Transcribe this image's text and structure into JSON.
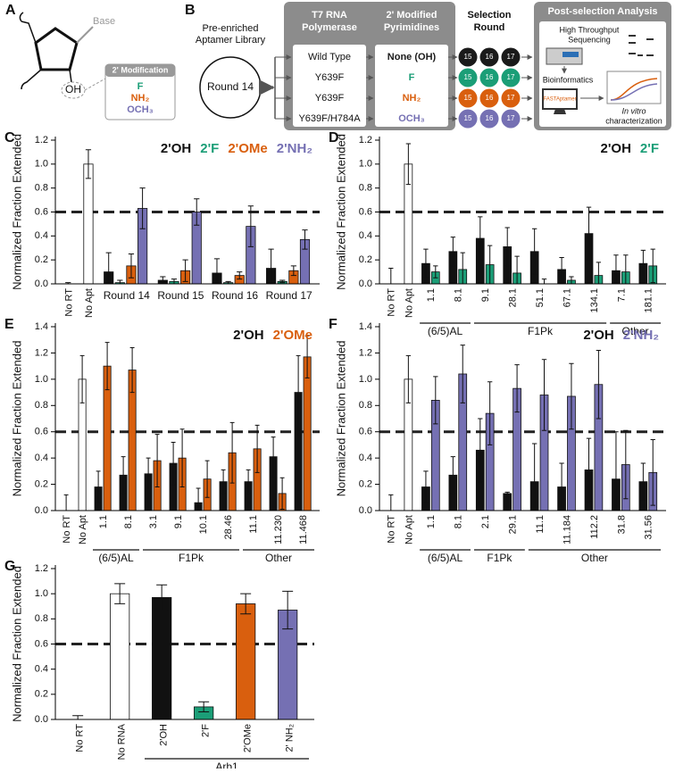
{
  "panel_a": {
    "label": "A",
    "base": "Base",
    "hydroxyl": "OH",
    "box_title": "2' Modification",
    "modifications": [
      {
        "text": "F",
        "color": "#1b9e77"
      },
      {
        "text": "NH₂",
        "color": "#d95f0e"
      },
      {
        "text": "OCH₃",
        "color": "#7570b3"
      }
    ]
  },
  "panel_b": {
    "label": "B",
    "library": [
      "Pre-enriched",
      "Aptamer Library"
    ],
    "start_round": "Round 14",
    "polymerase_header": [
      "T7 RNA",
      "Polymerase"
    ],
    "pyrimidine_header": [
      "2' Modified",
      "Pyrimidines"
    ],
    "round_header": [
      "Selection",
      "Round"
    ],
    "rows": [
      {
        "polymerase": "Wild Type",
        "pyrimidine": "None (OH)",
        "color": "#1a1a1a",
        "rounds": [
          "15",
          "16",
          "17"
        ]
      },
      {
        "polymerase": "Y639F",
        "pyrimidine": "F",
        "color": "#1b9e77",
        "rounds": [
          "15",
          "16",
          "17"
        ]
      },
      {
        "polymerase": "Y639F",
        "pyrimidine": "NH₂",
        "color": "#d95f0e",
        "rounds": [
          "15",
          "16",
          "17"
        ]
      },
      {
        "polymerase": "Y639F/H784A",
        "pyrimidine": "OCH₃",
        "color": "#7570b3",
        "rounds": [
          "15",
          "16",
          "17"
        ]
      }
    ],
    "post_header": "Post-selection Analysis",
    "sequencing": [
      "High Throughput",
      "Sequencing"
    ],
    "bioinformatics": "Bioinformatics",
    "software": "FASTAptamer",
    "in_vitro": "In vitro",
    "characterization": "characterization"
  },
  "chart_data": [
    {
      "type": "bar",
      "panel_label": "C",
      "ylabel": "Normalized Fraction Extended",
      "categories": [
        "No RT",
        "No Apt",
        "Round 14",
        "Round 15",
        "Round 16",
        "Round 17"
      ],
      "series": [
        {
          "color": "#ffffff",
          "values": [
            0,
            1.0,
            null,
            null,
            null,
            null
          ],
          "errors": [
            0.01,
            0.12,
            null,
            null,
            null,
            null
          ]
        },
        {
          "name": "2'OH",
          "color": "#111111",
          "values": [
            null,
            null,
            0.1,
            0.03,
            0.09,
            0.13
          ],
          "errors": [
            null,
            null,
            0.16,
            0.03,
            0.12,
            0.16
          ]
        },
        {
          "name": "2'F",
          "color": "#1b9e77",
          "values": [
            null,
            null,
            0.01,
            0.02,
            0.01,
            0.02
          ],
          "errors": [
            null,
            null,
            0.02,
            0.02,
            0.01,
            0.01
          ]
        },
        {
          "name": "2'OMe",
          "color": "#d95f0e",
          "values": [
            null,
            null,
            0.15,
            0.11,
            0.07,
            0.11
          ],
          "errors": [
            null,
            null,
            0.1,
            0.09,
            0.03,
            0.04
          ]
        },
        {
          "name": "2'NH₂",
          "color": "#7570b3",
          "values": [
            null,
            null,
            0.63,
            0.6,
            0.48,
            0.37
          ],
          "errors": [
            null,
            null,
            0.17,
            0.11,
            0.17,
            0.08
          ]
        }
      ],
      "ylim": [
        0,
        1.2
      ],
      "yticks": [
        {
          "value": 0,
          "label": "0.0"
        },
        0.2,
        0.4,
        0.6,
        0.8,
        {
          "value": 1,
          "label": "1.0"
        },
        1.2
      ],
      "reference_line": 0.6
    },
    {
      "type": "bar",
      "panel_label": "D",
      "ylabel": "Normalized Fraction Extended",
      "rotate_labels": true,
      "categories": [
        "No RT",
        "No Apt",
        "1.1",
        "8.1",
        "9.1",
        "28.1",
        "51.1",
        "67.1",
        "134.1",
        "7.1",
        "181.1"
      ],
      "groups": [
        {
          "label": "(6/5)AL",
          "categories": [
            "1.1",
            "8.1"
          ]
        },
        {
          "label": "F1Pk",
          "categories": [
            "9.1",
            "134.1"
          ]
        },
        {
          "label": "Other",
          "categories": [
            "7.1",
            "181.1"
          ]
        }
      ],
      "series": [
        {
          "color": "#ffffff",
          "values": [
            0,
            1.0,
            null,
            null,
            null,
            null,
            null,
            null,
            null,
            null,
            null
          ],
          "errors": [
            0.13,
            0.17,
            null,
            null,
            null,
            null,
            null,
            null,
            null,
            null,
            null
          ]
        },
        {
          "name": "2'OH",
          "color": "#111111",
          "values": [
            null,
            null,
            0.17,
            0.27,
            0.38,
            0.31,
            0.27,
            0.12,
            0.42,
            0.11,
            0.17
          ],
          "errors": [
            null,
            null,
            0.12,
            0.12,
            0.18,
            0.16,
            0.19,
            0.1,
            0.22,
            0.13,
            0.11
          ]
        },
        {
          "name": "2'F",
          "color": "#1b9e77",
          "values": [
            null,
            null,
            0.1,
            0.12,
            0.16,
            0.09,
            0,
            0.03,
            0.07,
            0.1,
            0.15
          ],
          "errors": [
            null,
            null,
            0.05,
            0.14,
            0.16,
            0.14,
            0.04,
            0.03,
            0.11,
            0.14,
            0.14
          ]
        }
      ],
      "ylim": [
        0,
        1.2
      ],
      "yticks": [
        {
          "value": 0,
          "label": "0.0"
        },
        0.2,
        0.4,
        0.6,
        0.8,
        {
          "value": 1,
          "label": "1.0"
        },
        1.2
      ],
      "reference_line": 0.6
    },
    {
      "type": "bar",
      "panel_label": "E",
      "ylabel": "Normalized Fraction Extended",
      "rotate_labels": true,
      "categories": [
        "No RT",
        "No Apt",
        "1.1",
        "8.1",
        "3.1",
        "9.1",
        "10.1",
        "28.46",
        "11.1",
        "11.230",
        "11.468"
      ],
      "groups": [
        {
          "label": "(6/5)AL",
          "categories": [
            "1.1",
            "8.1"
          ]
        },
        {
          "label": "F1Pk",
          "categories": [
            "3.1",
            "28.46"
          ]
        },
        {
          "label": "Other",
          "categories": [
            "11.1",
            "11.468"
          ]
        }
      ],
      "series": [
        {
          "color": "#ffffff",
          "values": [
            0,
            1.0,
            null,
            null,
            null,
            null,
            null,
            null,
            null,
            null,
            null
          ],
          "errors": [
            0.12,
            0.18,
            null,
            null,
            null,
            null,
            null,
            null,
            null,
            null,
            null
          ]
        },
        {
          "name": "2'OH",
          "color": "#111111",
          "values": [
            null,
            null,
            0.18,
            0.27,
            0.28,
            0.36,
            0.06,
            0.22,
            0.22,
            0.41,
            0.9
          ],
          "errors": [
            null,
            null,
            0.12,
            0.14,
            0.12,
            0.16,
            0.11,
            0.09,
            0.09,
            0.15,
            0.28
          ]
        },
        {
          "name": "2'OMe",
          "color": "#d95f0e",
          "values": [
            null,
            null,
            1.1,
            1.07,
            0.38,
            0.4,
            0.24,
            0.44,
            0.47,
            0.13,
            1.17
          ],
          "errors": [
            null,
            null,
            0.18,
            0.17,
            0.2,
            0.22,
            0.14,
            0.23,
            0.18,
            0.12,
            0.16
          ]
        }
      ],
      "ylim": [
        0,
        1.4
      ],
      "yticks": [
        {
          "value": 0,
          "label": "0.0"
        },
        0.2,
        0.4,
        0.6,
        0.8,
        {
          "value": 1,
          "label": "1.0"
        },
        1.2,
        1.4
      ],
      "reference_line": 0.6
    },
    {
      "type": "bar",
      "panel_label": "F",
      "ylabel": "Normalized Fraction Extended",
      "rotate_labels": true,
      "categories": [
        "No RT",
        "No Apt",
        "1.1",
        "8.1",
        "2.1",
        "29.1",
        "11.1",
        "11.184",
        "112.2",
        "31.8",
        "31.56"
      ],
      "groups": [
        {
          "label": "(6/5)AL",
          "categories": [
            "1.1",
            "8.1"
          ]
        },
        {
          "label": "F1Pk",
          "categories": [
            "2.1",
            "29.1"
          ]
        },
        {
          "label": "Other",
          "categories": [
            "11.1",
            "31.56"
          ]
        }
      ],
      "series": [
        {
          "color": "#ffffff",
          "values": [
            0,
            1.0,
            null,
            null,
            null,
            null,
            null,
            null,
            null,
            null,
            null
          ],
          "errors": [
            0.12,
            0.18,
            null,
            null,
            null,
            null,
            null,
            null,
            null,
            null,
            null
          ]
        },
        {
          "name": "2'OH",
          "color": "#111111",
          "values": [
            null,
            null,
            0.18,
            0.27,
            0.46,
            0.13,
            0.22,
            0.18,
            0.31,
            0.24,
            0.22
          ],
          "errors": [
            null,
            null,
            0.12,
            0.14,
            0.24,
            0.01,
            0.29,
            0.18,
            0.24,
            0.36,
            0.14
          ]
        },
        {
          "name": "2'NH₂",
          "color": "#7570b3",
          "values": [
            null,
            null,
            0.84,
            1.04,
            0.74,
            0.93,
            0.88,
            0.87,
            0.96,
            0.35,
            0.29
          ],
          "errors": [
            null,
            null,
            0.18,
            0.22,
            0.24,
            0.18,
            0.27,
            0.25,
            0.26,
            0.26,
            0.25
          ]
        }
      ],
      "ylim": [
        0,
        1.4
      ],
      "yticks": [
        {
          "value": 0,
          "label": "0.0"
        },
        0.2,
        0.4,
        0.6,
        0.8,
        {
          "value": 1,
          "label": "1.0"
        },
        1.2,
        1.4
      ],
      "reference_line": 0.6
    },
    {
      "type": "bar",
      "panel_label": "G",
      "ylabel": "Normalized Fraction Extended",
      "rotate_labels": true,
      "categories": [
        "No RT",
        "No RNA",
        "2'OH",
        "2'F",
        "2'OMe",
        "2' NH₂"
      ],
      "groups": [
        {
          "label": "Arb1",
          "categories": [
            "2'OH",
            "2' NH₂"
          ]
        }
      ],
      "series": [
        {
          "colors": [
            "#ffffff",
            "#ffffff",
            "#111111",
            "#1b9e77",
            "#d95f0e",
            "#7570b3"
          ],
          "values": [
            0,
            1.0,
            0.97,
            0.1,
            0.92,
            0.87
          ],
          "errors": [
            0.03,
            0.08,
            0.1,
            0.04,
            0.08,
            0.15
          ]
        }
      ],
      "ylim": [
        0,
        1.2
      ],
      "yticks": [
        {
          "value": 0,
          "label": "0.0"
        },
        0.2,
        0.4,
        0.6,
        0.8,
        {
          "value": 1,
          "label": "1.0"
        },
        1.2
      ],
      "reference_line": 0.6
    }
  ]
}
